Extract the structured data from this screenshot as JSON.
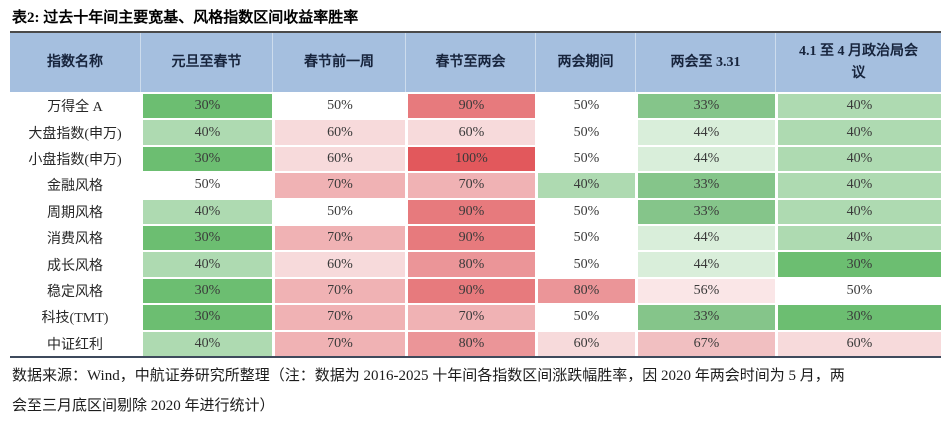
{
  "title": "表2: 过去十年间主要宽基、风格指数区间收益率胜率",
  "table": {
    "header_bg": "#A5BFDF",
    "top_border_color": "#4A4A4A",
    "bottom_border_color": "#3E4A5C",
    "columns": [
      "指数名称",
      "元旦至春节",
      "春节前一周",
      "春节至两会",
      "两会期间",
      "两会至 3.31",
      "4.1 至 4 月政治局会议"
    ],
    "value_suffix": "%",
    "rows": [
      {
        "name": "万得全 A",
        "values": [
          30,
          50,
          90,
          50,
          33,
          40
        ]
      },
      {
        "name": "大盘指数(申万)",
        "values": [
          40,
          60,
          60,
          50,
          44,
          40
        ]
      },
      {
        "name": "小盘指数(申万)",
        "values": [
          30,
          60,
          100,
          50,
          44,
          40
        ]
      },
      {
        "name": "金融风格",
        "values": [
          50,
          70,
          70,
          40,
          33,
          40
        ]
      },
      {
        "name": "周期风格",
        "values": [
          40,
          50,
          90,
          50,
          33,
          40
        ]
      },
      {
        "name": "消费风格",
        "values": [
          30,
          70,
          90,
          50,
          44,
          40
        ]
      },
      {
        "name": "成长风格",
        "values": [
          40,
          60,
          80,
          50,
          44,
          30
        ]
      },
      {
        "name": "稳定风格",
        "values": [
          30,
          70,
          90,
          80,
          56,
          50
        ]
      },
      {
        "name": "科技(TMT)",
        "values": [
          30,
          70,
          70,
          50,
          33,
          30
        ]
      },
      {
        "name": "中证红利",
        "values": [
          40,
          70,
          80,
          60,
          67,
          60
        ]
      }
    ],
    "color_scale": {
      "30": "#6CBE71",
      "33": "#85C58A",
      "40": "#AEDAB1",
      "44": "#D9EEDA",
      "50": "#FFFFFF",
      "56": "#FAE6E7",
      "60": "#F7DADB",
      "67": "#F1BFC1",
      "70": "#F0B2B4",
      "80": "#EB9598",
      "90": "#E77A7D",
      "100": "#E2585C"
    }
  },
  "footnote": {
    "line1": "数据来源：Wind，中航证券研究所整理（注：数据为 2016-2025 十年间各指数区间涨跌幅胜率，因 2020 年两会时间为 5 月，两",
    "line2": "会至三月底区间剔除 2020 年进行统计）"
  }
}
